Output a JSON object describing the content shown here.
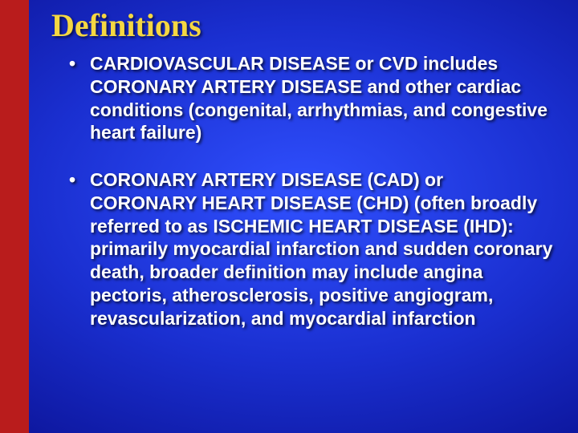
{
  "slide": {
    "title": "Definitions",
    "title_color": "#f5d742",
    "background_gradient_center": "#3050ff",
    "background_gradient_outer": "#020440",
    "sidebar_color": "#b91c1c",
    "bullet_color": "#ffffff",
    "title_font": "Times New Roman",
    "body_font": "Arial",
    "title_fontsize": 40,
    "body_fontsize": 23,
    "bullets": [
      "CARDIOVASCULAR DISEASE or CVD includes CORONARY ARTERY DISEASE and other cardiac conditions (congenital, arrhythmias, and congestive heart failure)",
      "CORONARY ARTERY DISEASE (CAD) or CORONARY HEART DISEASE (CHD) (often broadly referred to as ISCHEMIC HEART DISEASE (IHD): primarily myocardial infarction and sudden coronary death, broader definition may include angina pectoris, atherosclerosis, positive angiogram, revascularization, and myocardial infarction"
    ]
  }
}
